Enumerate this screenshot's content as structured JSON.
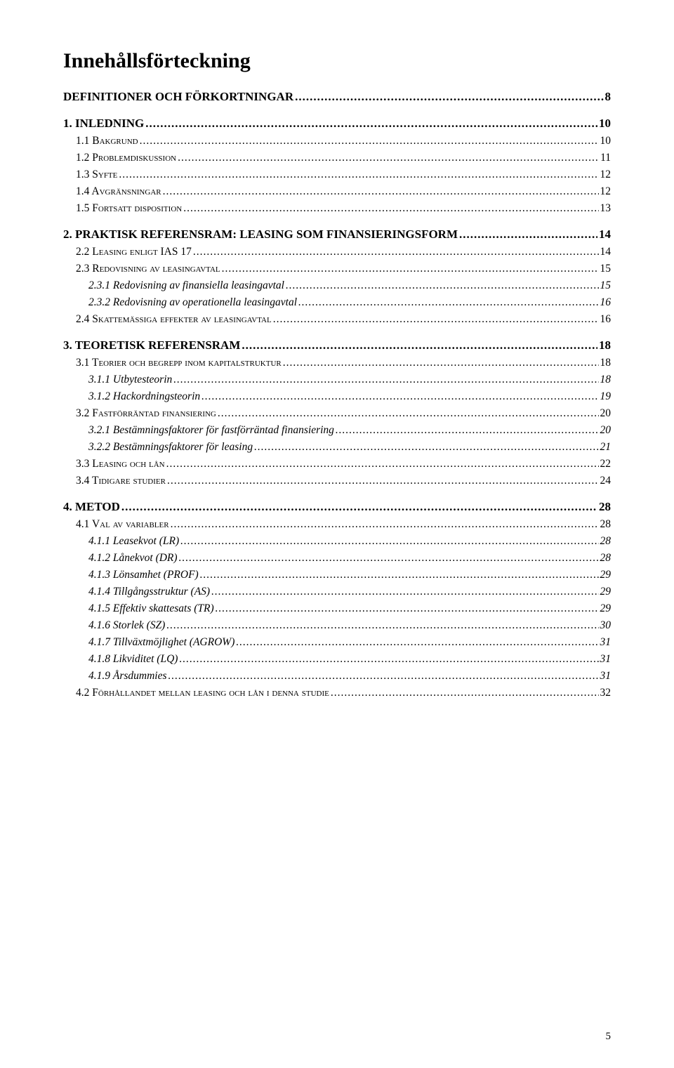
{
  "doc_title": "Innehållsförteckning",
  "page_number": "5",
  "toc": [
    {
      "level": 1,
      "label": "DEFINITIONER OCH FÖRKORTNINGAR",
      "page": "8"
    },
    {
      "level": 1,
      "label": "1. INLEDNING",
      "page": "10"
    },
    {
      "level": 2,
      "label": "1.1 Bakgrund",
      "page": "10"
    },
    {
      "level": 2,
      "label": "1.2 Problemdiskussion",
      "page": "11"
    },
    {
      "level": 2,
      "label": "1.3 Syfte",
      "page": "12"
    },
    {
      "level": 2,
      "label": "1.4 Avgränsningar",
      "page": "12"
    },
    {
      "level": 2,
      "label": "1.5 Fortsatt disposition",
      "page": "13"
    },
    {
      "level": 1,
      "label": "2. PRAKTISK REFERENSRAM: LEASING SOM FINANSIERINGSFORM",
      "page": "14"
    },
    {
      "level": 2,
      "label": "2.2 Leasing enligt IAS 17",
      "page": "14"
    },
    {
      "level": 2,
      "label": "2.3 Redovisning av leasingavtal",
      "page": "15"
    },
    {
      "level": 3,
      "label": "2.3.1 Redovisning av finansiella leasingavtal",
      "page": "15"
    },
    {
      "level": 3,
      "label": "2.3.2 Redovisning av operationella leasingavtal",
      "page": "16"
    },
    {
      "level": 2,
      "label": "2.4 Skattemässiga effekter av leasingavtal",
      "page": "16"
    },
    {
      "level": 1,
      "label": "3. TEORETISK REFERENSRAM",
      "page": "18"
    },
    {
      "level": 2,
      "label": "3.1 Teorier och begrepp inom kapitalstruktur",
      "page": "18"
    },
    {
      "level": 3,
      "label": "3.1.1 Utbytesteorin",
      "page": "18"
    },
    {
      "level": 3,
      "label": "3.1.2 Hackordningsteorin",
      "page": "19"
    },
    {
      "level": 2,
      "label": "3.2 Fastförräntad finansiering",
      "page": "20"
    },
    {
      "level": 3,
      "label": "3.2.1 Bestämningsfaktorer för fastförräntad finansiering",
      "page": "20"
    },
    {
      "level": 3,
      "label": "3.2.2 Bestämningsfaktorer för leasing",
      "page": "21"
    },
    {
      "level": 2,
      "label": "3.3 Leasing och lån",
      "page": "22"
    },
    {
      "level": 2,
      "label": "3.4 Tidigare studier",
      "page": "24"
    },
    {
      "level": 1,
      "label": "4. METOD",
      "page": "28"
    },
    {
      "level": 2,
      "label": "4.1 Val av variabler",
      "page": "28"
    },
    {
      "level": 3,
      "label": "4.1.1 Leasekvot (LR)",
      "page": "28"
    },
    {
      "level": 3,
      "label": "4.1.2 Lånekvot (DR)",
      "page": "28"
    },
    {
      "level": 3,
      "label": "4.1.3 Lönsamhet (PROF)",
      "page": "29"
    },
    {
      "level": 3,
      "label": "4.1.4 Tillgångsstruktur (AS)",
      "page": "29"
    },
    {
      "level": 3,
      "label": "4.1.5 Effektiv skattesats (TR)",
      "page": "29"
    },
    {
      "level": 3,
      "label": "4.1.6 Storlek (SZ)",
      "page": "30"
    },
    {
      "level": 3,
      "label": "4.1.7 Tillväxtmöjlighet (AGROW)",
      "page": "31"
    },
    {
      "level": 3,
      "label": "4.1.8 Likviditet (LQ)",
      "page": "31"
    },
    {
      "level": 3,
      "label": "4.1.9 Årsdummies",
      "page": "31"
    },
    {
      "level": 2,
      "label": "4.2 Förhållandet mellan leasing och lån i denna studie",
      "page": "32"
    }
  ]
}
